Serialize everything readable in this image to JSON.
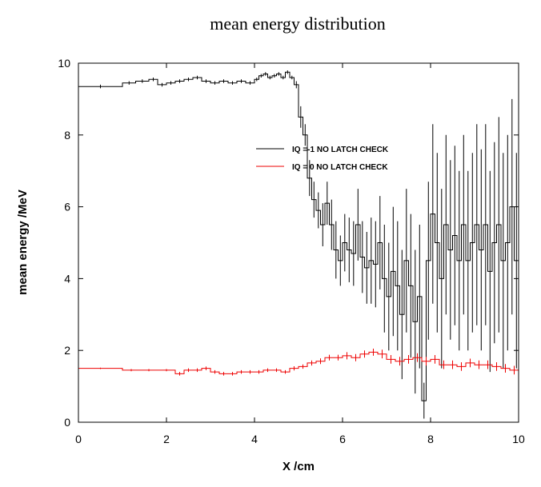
{
  "chart_data": {
    "type": "line",
    "title": "mean energy distribution",
    "xlabel": "X /cm",
    "ylabel": "mean energy /MeV",
    "xlim": [
      0,
      10
    ],
    "ylim": [
      0,
      10
    ],
    "xticks": [
      "0",
      "2",
      "4",
      "6",
      "8",
      "10"
    ],
    "yticks": [
      "0",
      "2",
      "4",
      "6",
      "8",
      "10"
    ],
    "grid": false,
    "legend_position": "upper-right inside plot",
    "series": [
      {
        "name": "IQ =-1 NO LATCH CHECK",
        "color": "#000000",
        "step": true,
        "x": [
          0.0,
          1.0,
          1.3,
          1.6,
          1.8,
          2.0,
          2.2,
          2.4,
          2.6,
          2.8,
          3.0,
          3.2,
          3.4,
          3.6,
          3.8,
          4.0,
          4.1,
          4.2,
          4.3,
          4.4,
          4.5,
          4.6,
          4.7,
          4.8,
          4.9,
          5.0,
          5.1,
          5.2,
          5.3,
          5.4,
          5.5,
          5.6,
          5.7,
          5.8,
          5.9,
          6.0,
          6.1,
          6.2,
          6.3,
          6.4,
          6.5,
          6.6,
          6.7,
          6.8,
          6.9,
          7.0,
          7.1,
          7.2,
          7.3,
          7.4,
          7.5,
          7.6,
          7.7,
          7.8,
          7.9,
          8.0,
          8.1,
          8.2,
          8.3,
          8.4,
          8.5,
          8.6,
          8.7,
          8.8,
          8.9,
          9.0,
          9.1,
          9.2,
          9.3,
          9.4,
          9.5,
          9.6,
          9.7,
          9.8,
          9.9
        ],
        "x_end": 10.0,
        "y": [
          9.35,
          9.45,
          9.5,
          9.55,
          9.4,
          9.45,
          9.5,
          9.55,
          9.6,
          9.5,
          9.45,
          9.5,
          9.45,
          9.5,
          9.45,
          9.55,
          9.65,
          9.7,
          9.6,
          9.65,
          9.7,
          9.6,
          9.75,
          9.6,
          9.4,
          8.5,
          8.0,
          6.8,
          6.2,
          5.9,
          5.5,
          6.1,
          5.5,
          4.8,
          4.5,
          5.0,
          4.8,
          4.7,
          5.5,
          4.6,
          4.3,
          4.5,
          4.4,
          5.0,
          4.0,
          3.5,
          4.2,
          3.8,
          3.0,
          4.5,
          3.8,
          2.8,
          3.5,
          0.6,
          4.5,
          5.8,
          5.0,
          4.0,
          5.5,
          4.8,
          5.2,
          4.5,
          5.5,
          4.5,
          5.0,
          5.5,
          4.8,
          5.5,
          4.2,
          5.0,
          5.5,
          4.5,
          5.0,
          6.0,
          4.5
        ],
        "err": [
          0.05,
          0.05,
          0.05,
          0.05,
          0.05,
          0.05,
          0.05,
          0.05,
          0.05,
          0.05,
          0.05,
          0.05,
          0.05,
          0.05,
          0.05,
          0.05,
          0.05,
          0.05,
          0.05,
          0.05,
          0.05,
          0.05,
          0.05,
          0.05,
          0.1,
          0.3,
          0.3,
          0.5,
          0.5,
          0.5,
          0.6,
          0.6,
          0.7,
          0.8,
          0.7,
          0.8,
          0.9,
          0.9,
          1.0,
          1.0,
          1.0,
          1.2,
          1.2,
          1.3,
          1.5,
          1.5,
          1.8,
          1.8,
          1.8,
          2.0,
          2.0,
          2.0,
          2.0,
          0.5,
          2.2,
          2.5,
          2.5,
          2.5,
          2.5,
          2.5,
          2.5,
          2.5,
          2.5,
          2.5,
          2.5,
          2.8,
          2.8,
          2.8,
          2.8,
          2.8,
          3.0,
          3.0,
          3.0,
          3.0,
          3.0
        ]
      },
      {
        "name": "IQ = 0 NO LATCH CHECK",
        "color": "#ee0000",
        "step": true,
        "x": [
          0.0,
          1.0,
          1.4,
          1.8,
          2.2,
          2.4,
          2.6,
          2.8,
          3.0,
          3.2,
          3.4,
          3.6,
          3.8,
          4.0,
          4.2,
          4.4,
          4.6,
          4.8,
          5.0,
          5.2,
          5.4,
          5.6,
          5.8,
          6.0,
          6.2,
          6.4,
          6.6,
          6.8,
          7.0,
          7.2,
          7.4,
          7.6,
          7.8,
          8.0,
          8.2,
          8.4,
          8.6,
          8.8,
          9.0,
          9.2,
          9.4,
          9.6,
          9.8
        ],
        "x_end": 10.0,
        "y": [
          1.5,
          1.45,
          1.45,
          1.45,
          1.35,
          1.45,
          1.45,
          1.5,
          1.4,
          1.35,
          1.35,
          1.4,
          1.4,
          1.4,
          1.45,
          1.45,
          1.4,
          1.5,
          1.55,
          1.65,
          1.7,
          1.8,
          1.8,
          1.85,
          1.8,
          1.9,
          1.95,
          1.9,
          1.75,
          1.7,
          1.75,
          1.8,
          1.7,
          1.75,
          1.6,
          1.6,
          1.55,
          1.65,
          1.6,
          1.6,
          1.55,
          1.5,
          1.45
        ],
        "err": [
          0.02,
          0.03,
          0.03,
          0.03,
          0.05,
          0.05,
          0.05,
          0.05,
          0.05,
          0.05,
          0.05,
          0.05,
          0.05,
          0.05,
          0.05,
          0.05,
          0.05,
          0.06,
          0.06,
          0.07,
          0.08,
          0.08,
          0.08,
          0.1,
          0.1,
          0.1,
          0.1,
          0.12,
          0.12,
          0.12,
          0.12,
          0.12,
          0.12,
          0.12,
          0.12,
          0.12,
          0.12,
          0.12,
          0.12,
          0.12,
          0.12,
          0.12,
          0.12
        ]
      }
    ]
  }
}
